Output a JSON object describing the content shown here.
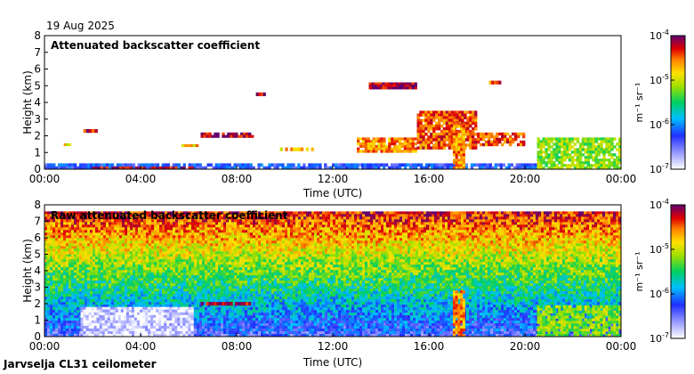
{
  "header": {
    "date": "19 Aug 2025"
  },
  "footer": {
    "station": "Jarvselja CL31 ceilometer"
  },
  "colorbar": {
    "tick_labels": [
      {
        "base": "10",
        "exp": "-4"
      },
      {
        "base": "10",
        "exp": "-5"
      },
      {
        "base": "10",
        "exp": "-6"
      },
      {
        "base": "10",
        "exp": "-7"
      }
    ],
    "unit_label": "m⁻¹ sr⁻¹",
    "range": [
      1e-07,
      0.0001
    ],
    "scale": "log"
  },
  "chart_data": [
    {
      "type": "heatmap",
      "id": "attenuated",
      "title": "Attenuated backscatter coefficient",
      "xlabel": "Time (UTC)",
      "ylabel": "Height (km)",
      "xlim": [
        0,
        24
      ],
      "ylim": [
        0,
        8
      ],
      "x_tick_values": [
        0,
        4,
        8,
        12,
        16,
        20,
        24
      ],
      "x_ticks": [
        "00:00",
        "04:00",
        "08:00",
        "12:00",
        "16:00",
        "20:00",
        "00:00"
      ],
      "y_tick_values": [
        0,
        1,
        2,
        3,
        4,
        5,
        6,
        7,
        8
      ],
      "y_ticks": [
        "0",
        "1",
        "2",
        "3",
        "4",
        "5",
        "6",
        "7",
        "8"
      ],
      "features": [
        {
          "name": "boundary layer",
          "t0": 0.0,
          "t1": 20.5,
          "h0": 0.0,
          "h1": 0.35,
          "level": 0.25
        },
        {
          "name": "fog/low cloud",
          "t0": 2.0,
          "t1": 6.2,
          "h0": 0.05,
          "h1": 0.15,
          "level": 0.95
        },
        {
          "name": "cloud",
          "t0": 1.5,
          "t1": 2.2,
          "h0": 2.2,
          "h1": 2.4,
          "level": 0.9
        },
        {
          "name": "cloud",
          "t0": 0.8,
          "t1": 1.1,
          "h0": 1.4,
          "h1": 1.55,
          "level": 0.7
        },
        {
          "name": "cloud",
          "t0": 5.7,
          "t1": 6.4,
          "h0": 1.35,
          "h1": 1.5,
          "level": 0.75
        },
        {
          "name": "cloud",
          "t0": 6.5,
          "t1": 8.7,
          "h0": 1.9,
          "h1": 2.2,
          "level": 0.95
        },
        {
          "name": "cloud",
          "t0": 9.8,
          "t1": 11.2,
          "h0": 1.1,
          "h1": 1.3,
          "level": 0.75
        },
        {
          "name": "cloud",
          "t0": 13.0,
          "t1": 15.5,
          "h0": 1.0,
          "h1": 1.9,
          "level": 0.8
        },
        {
          "name": "cloud",
          "t0": 15.5,
          "t1": 18.0,
          "h0": 1.2,
          "h1": 3.5,
          "level": 0.85
        },
        {
          "name": "cloud",
          "t0": 18.0,
          "t1": 20.0,
          "h0": 1.4,
          "h1": 2.2,
          "level": 0.85
        },
        {
          "name": "precipitation",
          "t0": 17.0,
          "t1": 17.5,
          "h0": 0.0,
          "h1": 2.8,
          "level": 0.8
        },
        {
          "name": "cirrus",
          "t0": 13.5,
          "t1": 15.5,
          "h0": 4.8,
          "h1": 5.2,
          "level": 0.95
        },
        {
          "name": "cirrus",
          "t0": 18.5,
          "t1": 19.0,
          "h0": 5.1,
          "h1": 5.3,
          "level": 0.85
        },
        {
          "name": "cirrus",
          "t0": 8.8,
          "t1": 9.2,
          "h0": 4.4,
          "h1": 4.6,
          "level": 0.95
        },
        {
          "name": "rain",
          "t0": 20.5,
          "t1": 24.0,
          "h0": 0.0,
          "h1": 1.9,
          "level": 0.6
        }
      ]
    },
    {
      "type": "heatmap",
      "id": "raw",
      "title": "Raw attenuated backscatter coefficient",
      "xlabel": "Time (UTC)",
      "ylabel": "Height (km)",
      "xlim": [
        0,
        24
      ],
      "ylim": [
        0,
        8
      ],
      "x_tick_values": [
        0,
        4,
        8,
        12,
        16,
        20,
        24
      ],
      "x_ticks": [
        "00:00",
        "04:00",
        "08:00",
        "12:00",
        "16:00",
        "20:00",
        "00:00"
      ],
      "y_tick_values": [
        0,
        1,
        2,
        3,
        4,
        5,
        6,
        7,
        8
      ],
      "y_ticks": [
        "0",
        "1",
        "2",
        "3",
        "4",
        "5",
        "6",
        "7",
        "8"
      ],
      "features": [
        {
          "name": "noise increasing with height",
          "t0": 0.0,
          "t1": 24.0,
          "h0": 0.0,
          "h1": 7.6,
          "level": 0.55
        },
        {
          "name": "saturated region",
          "t0": 1.5,
          "t1": 6.2,
          "h0": 0.0,
          "h1": 1.8,
          "level": 0.05
        },
        {
          "name": "cloud",
          "t0": 6.5,
          "t1": 8.7,
          "h0": 1.9,
          "h1": 2.1,
          "level": 0.95
        },
        {
          "name": "precipitation",
          "t0": 17.0,
          "t1": 17.5,
          "h0": 0.0,
          "h1": 2.8,
          "level": 0.8
        },
        {
          "name": "rain",
          "t0": 20.5,
          "t1": 24.0,
          "h0": 0.0,
          "h1": 1.9,
          "level": 0.6
        }
      ]
    }
  ]
}
